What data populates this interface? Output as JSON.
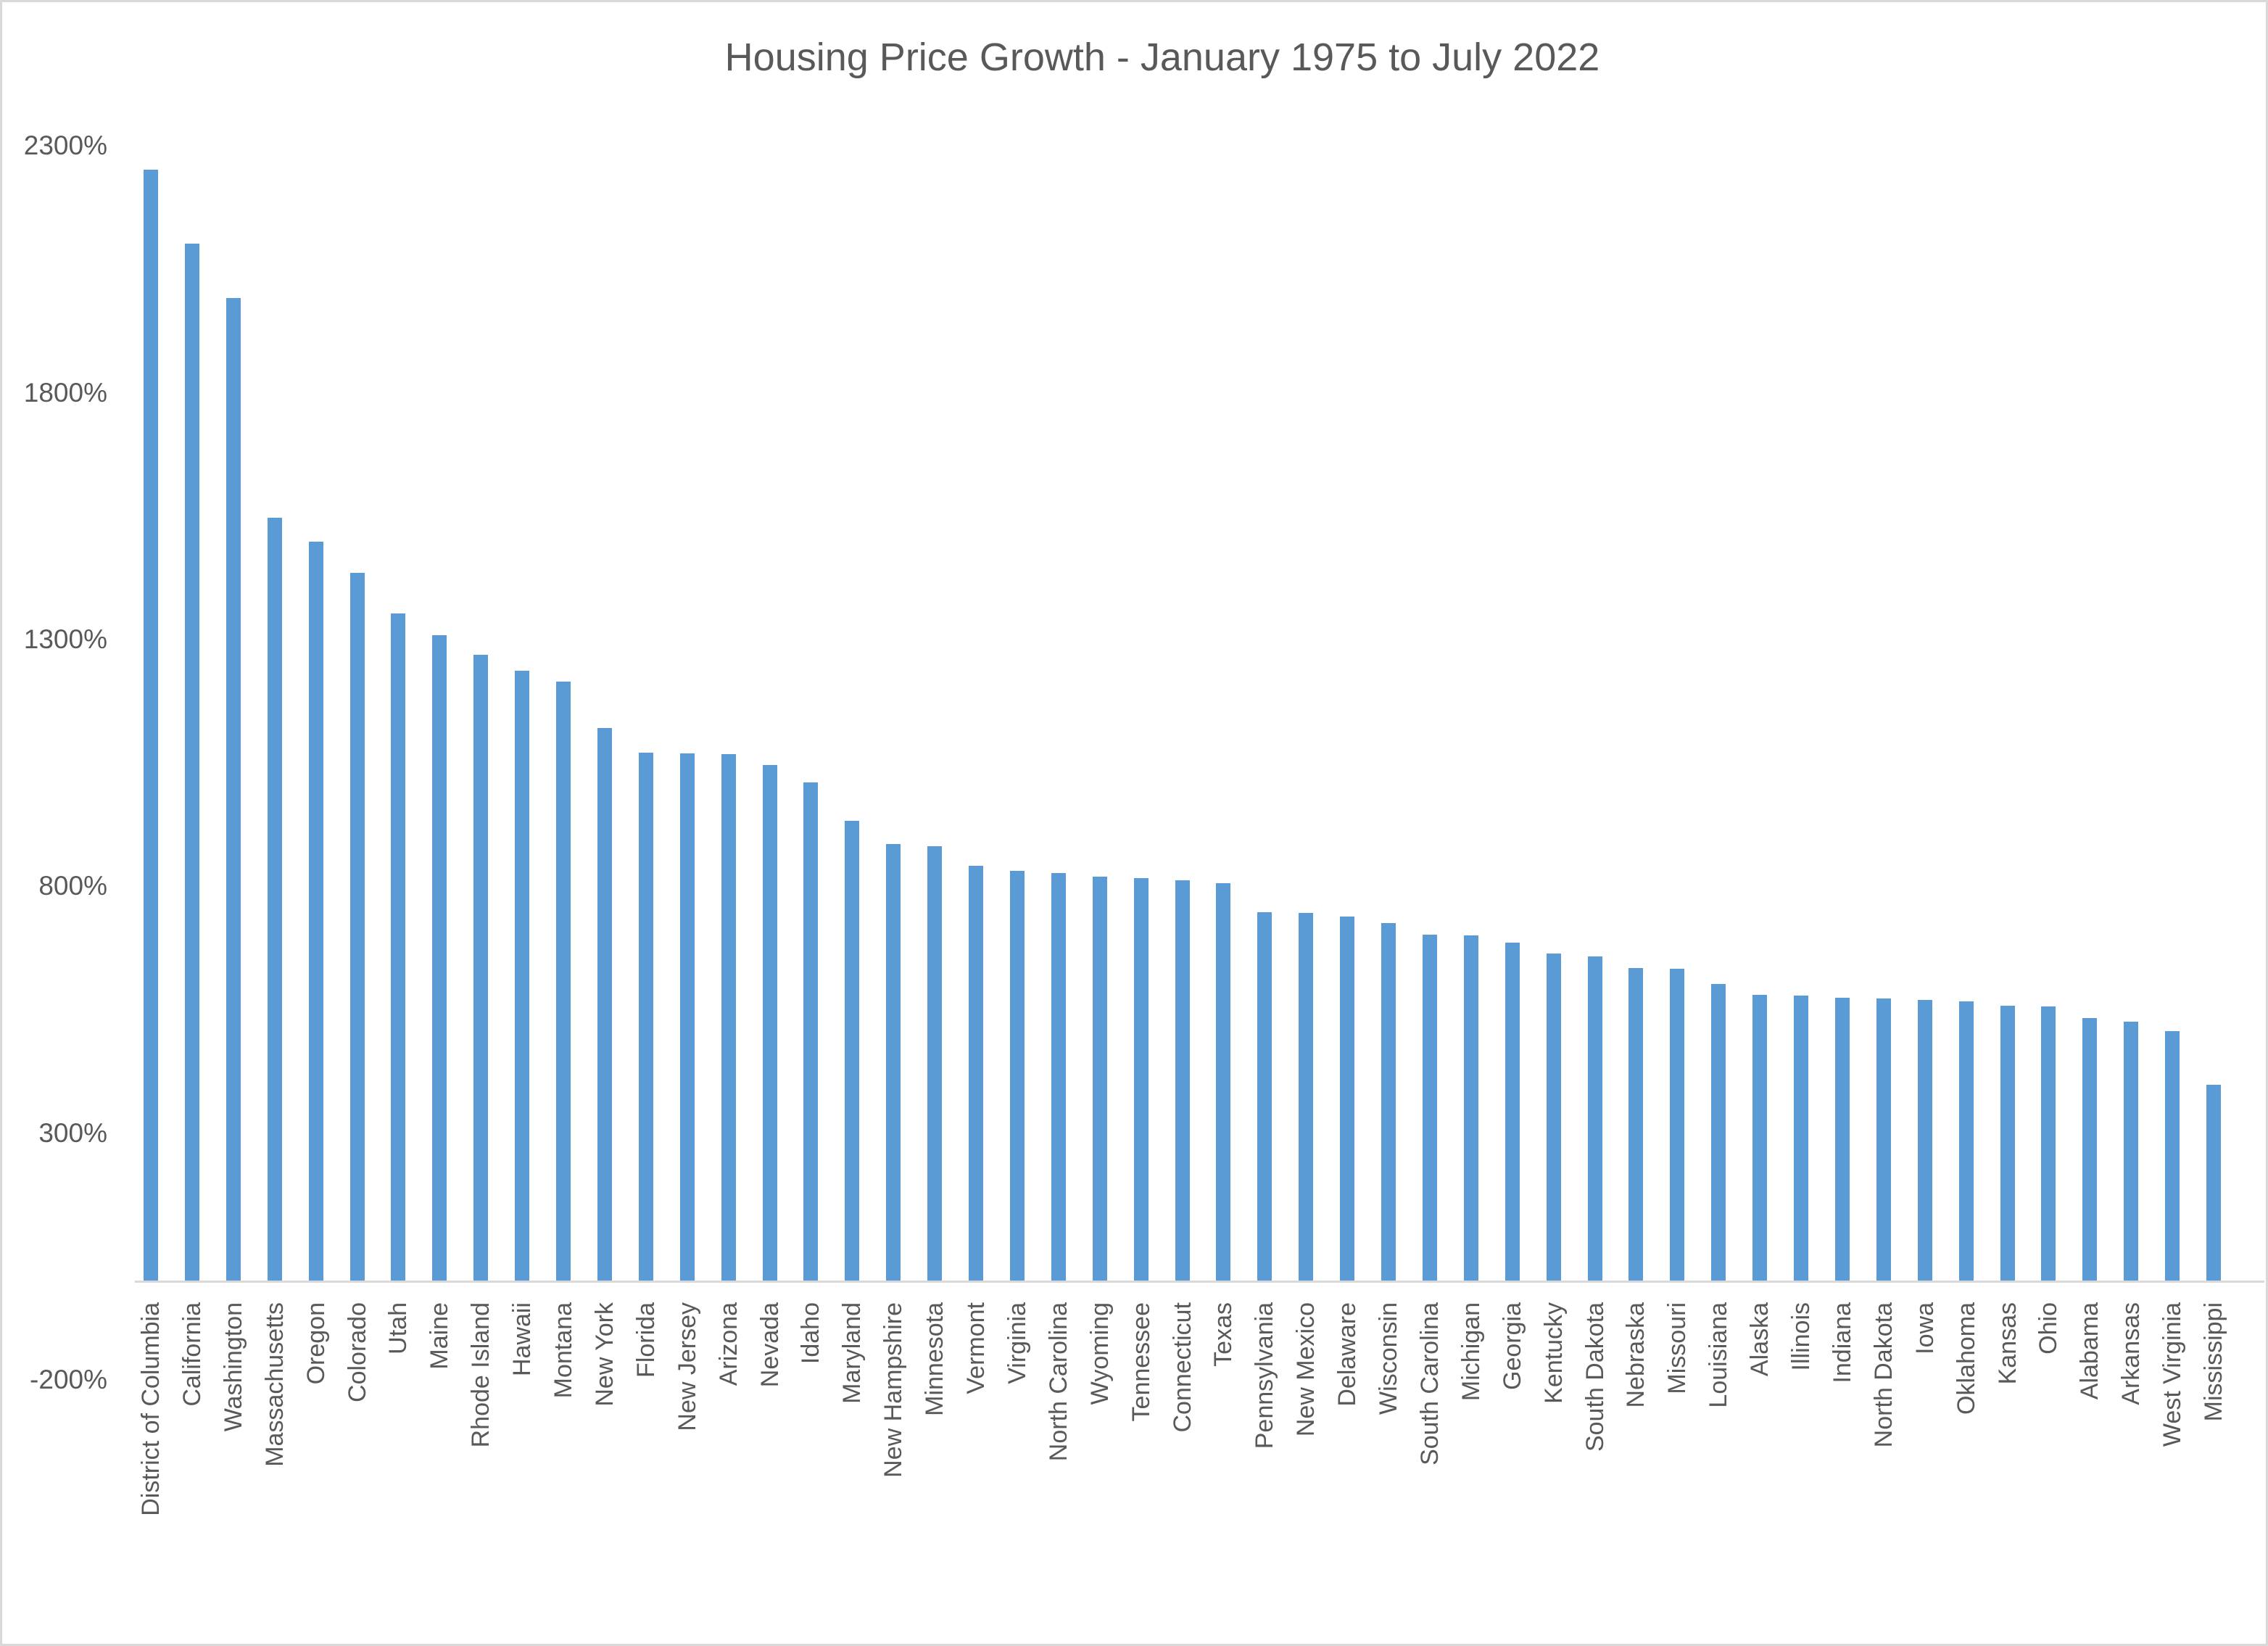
{
  "title": "Housing Price Growth - January 1975 to July 2022",
  "colors": {
    "bar": "#5B9BD5",
    "axis_line": "#D9D9D9",
    "border": "#D9D9D9",
    "text": "#595959",
    "background": "#FFFFFF"
  },
  "y_axis": {
    "unit": "%",
    "min": -200,
    "max": 2300,
    "tick_step": 500,
    "tick_labels": [
      "2300%",
      "1800%",
      "1300%",
      "800%",
      "300%",
      "-200%"
    ],
    "tick_values": [
      2300,
      1800,
      1300,
      800,
      300,
      -200
    ]
  },
  "chart_data": {
    "type": "bar",
    "title": "Housing Price Growth - January 1975 to July 2022",
    "xlabel": "",
    "ylabel": "",
    "ylim": [
      -200,
      2300
    ],
    "grid": false,
    "legend_position": "none",
    "bar_baseline": 0,
    "categories": [
      "District of Columbia",
      "California",
      "Washington",
      "Massachusetts",
      "Oregon",
      "Colorado",
      "Utah",
      "Maine",
      "Rhode Island",
      "Hawaii",
      "Montana",
      "New York",
      "Florida",
      "New Jersey",
      "Arizona",
      "Nevada",
      "Idaho",
      "Maryland",
      "New Hampshire",
      "Minnesota",
      "Vermont",
      "Virginia",
      "North Carolina",
      "Wyoming",
      "Tennessee",
      "Connecticut",
      "Texas",
      "Pennsylvania",
      "New Mexico",
      "Delaware",
      "Wisconsin",
      "South Carolina",
      "Michigan",
      "Georgia",
      "Kentucky",
      "South Dakota",
      "Nebraska",
      "Missouri",
      "Louisiana",
      "Alaska",
      "Illinois",
      "Indiana",
      "North Dakota",
      "Iowa",
      "Oklahoma",
      "Kansas",
      "Ohio",
      "Alabama",
      "Arkansas",
      "West Virginia",
      "Mississippi"
    ],
    "values": [
      2250,
      2100,
      1990,
      1545,
      1497,
      1433,
      1352,
      1307,
      1267,
      1235,
      1214,
      1119,
      1070,
      1068,
      1066,
      1044,
      1009,
      931,
      884,
      880,
      840,
      830,
      826,
      818,
      815,
      811,
      805,
      746,
      744,
      737,
      724,
      701,
      699,
      685,
      662,
      657,
      633,
      631,
      601,
      579,
      577,
      573,
      571,
      568,
      566,
      557,
      555,
      532,
      524,
      505,
      397
    ]
  }
}
